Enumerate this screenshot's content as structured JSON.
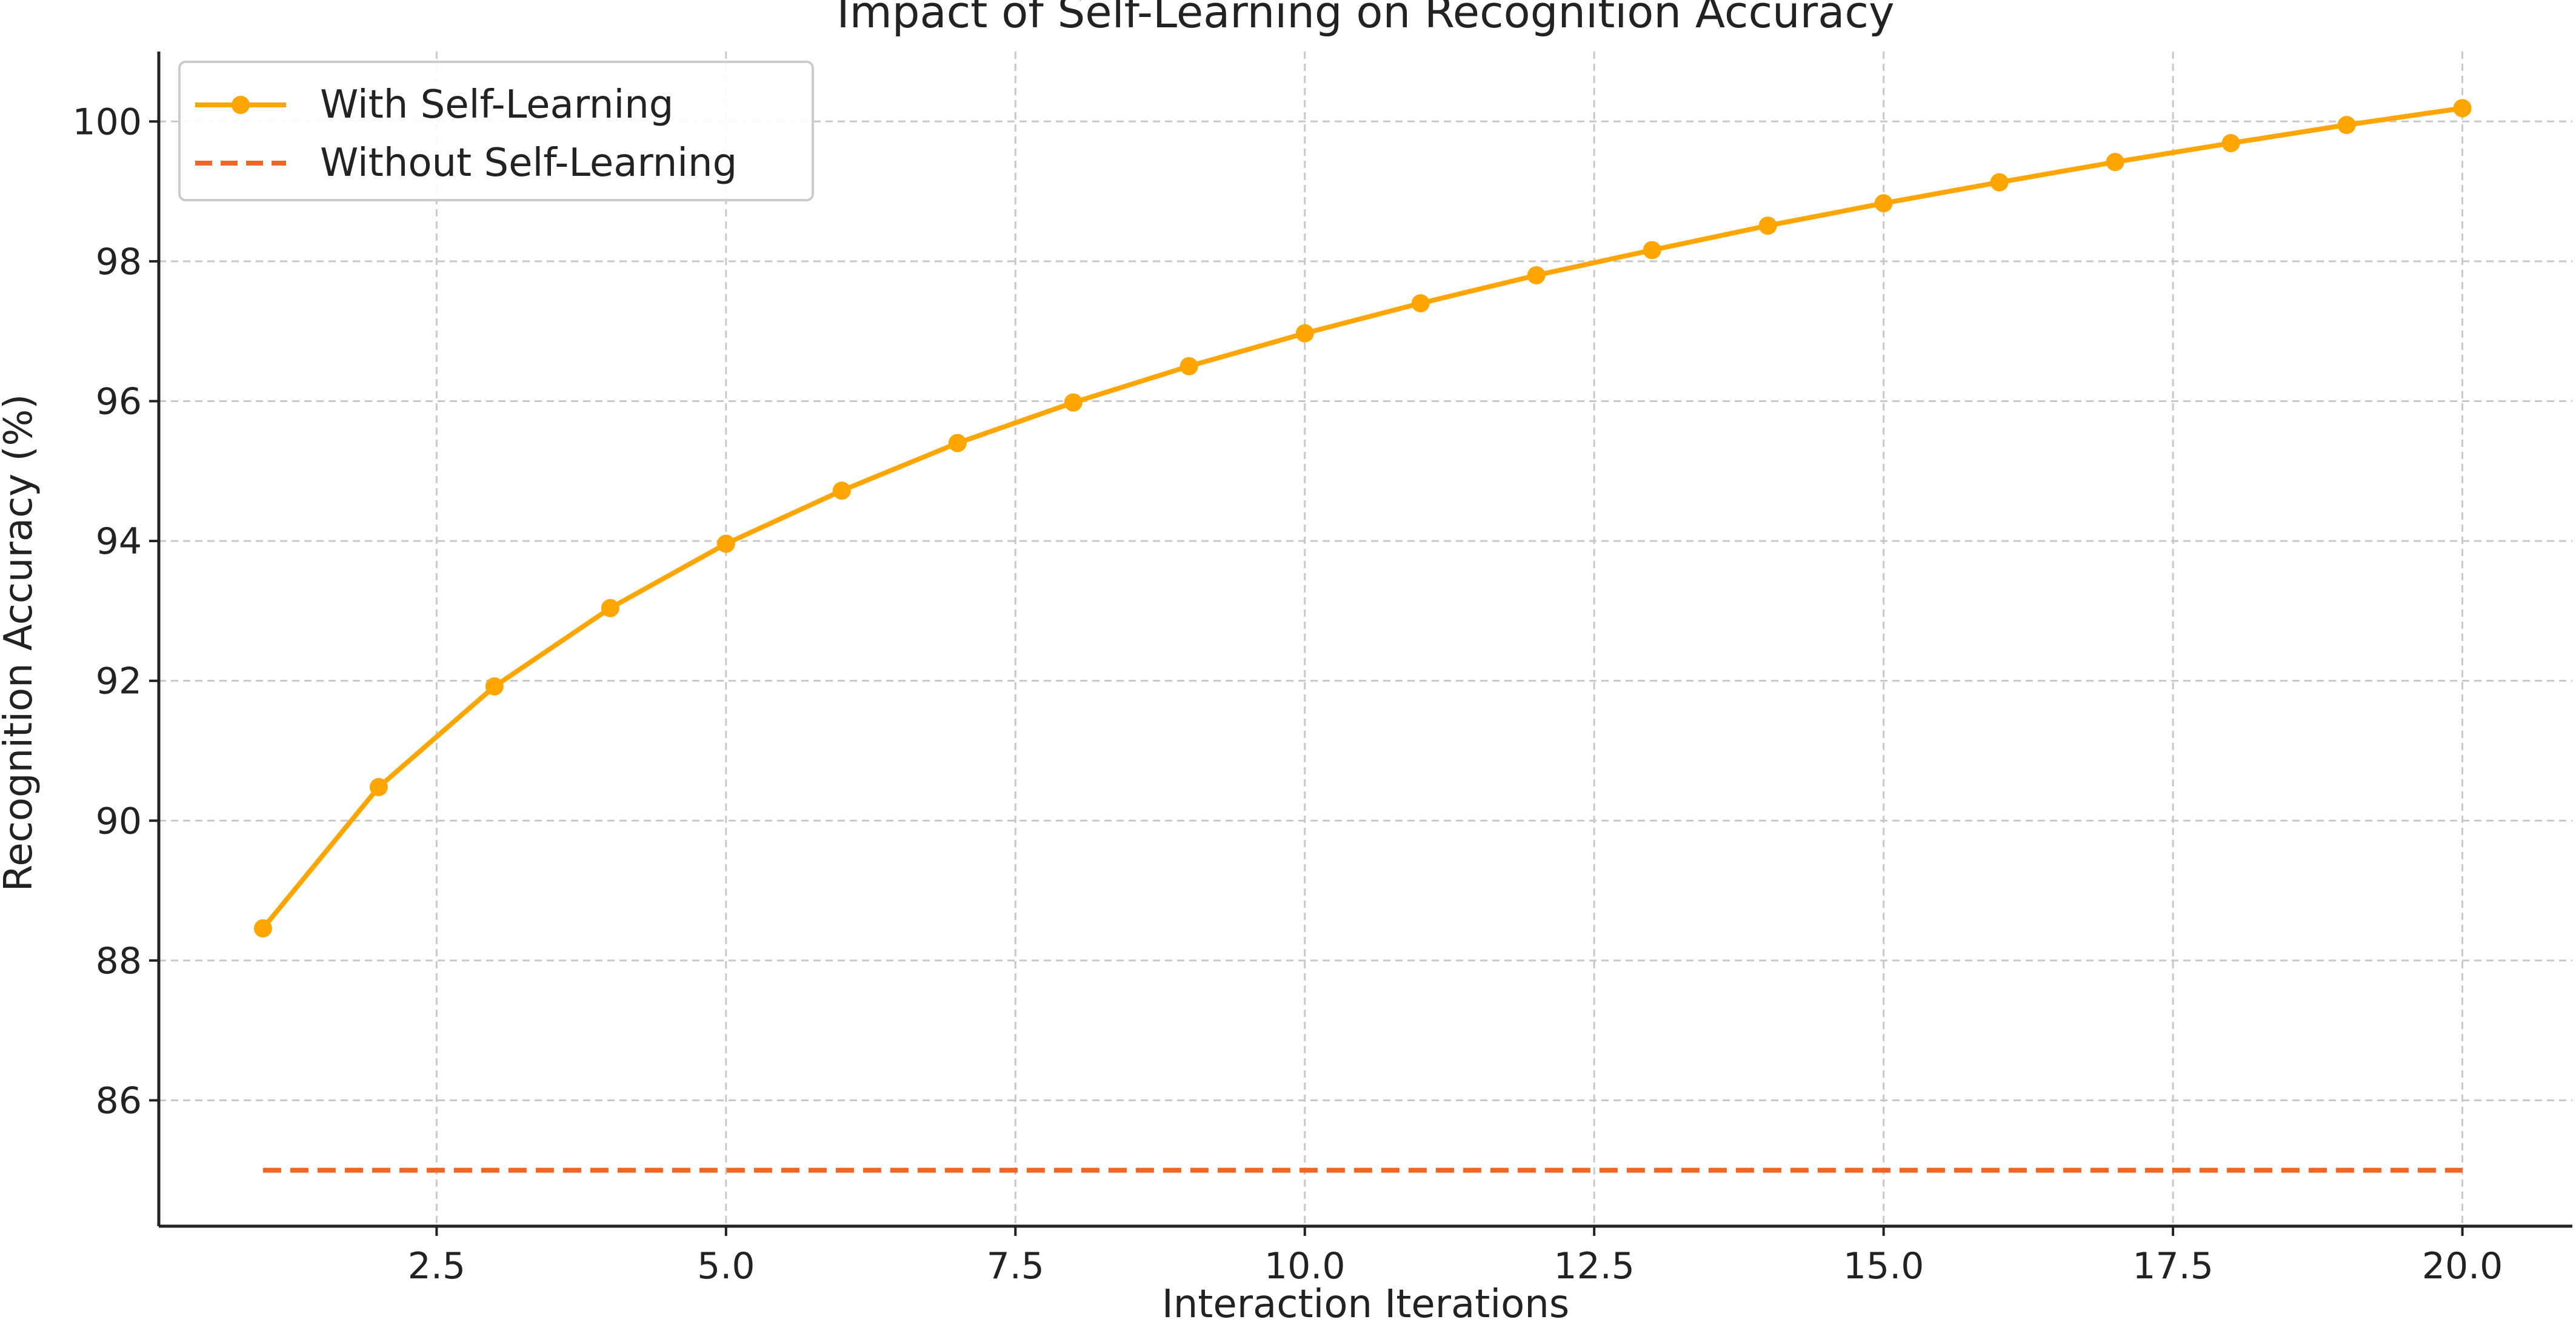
{
  "chart_data": {
    "type": "line",
    "title": "Impact of Self-Learning on Recognition Accuracy",
    "xlabel": "Interaction Iterations",
    "ylabel": "Recognition Accuracy (%)",
    "xlim": [
      0.1,
      20.95
    ],
    "ylim": [
      84.2,
      101.0
    ],
    "xticks": [
      2.5,
      5.0,
      7.5,
      10.0,
      12.5,
      15.0,
      17.5,
      20.0
    ],
    "xtick_labels": [
      "2.5",
      "5.0",
      "7.5",
      "10.0",
      "12.5",
      "15.0",
      "17.5",
      "20.0"
    ],
    "yticks": [
      86,
      88,
      90,
      92,
      94,
      96,
      98,
      100
    ],
    "ytick_labels": [
      "86",
      "88",
      "90",
      "92",
      "94",
      "96",
      "98",
      "100"
    ],
    "grid": true,
    "legend_position": "top-left",
    "x": [
      1,
      2,
      3,
      4,
      5,
      6,
      7,
      8,
      9,
      10,
      11,
      12,
      13,
      14,
      15,
      16,
      17,
      18,
      19,
      20
    ],
    "series": [
      {
        "name": "With Self-Learning",
        "style": "solid-with-markers",
        "color": "#FFA500",
        "values": [
          88.46,
          90.48,
          91.92,
          93.04,
          93.96,
          94.72,
          95.4,
          95.98,
          96.5,
          96.97,
          97.4,
          97.8,
          98.16,
          98.51,
          98.83,
          99.13,
          99.42,
          99.69,
          99.95,
          100.19
        ]
      },
      {
        "name": "Without Self-Learning",
        "style": "dashed",
        "color": "#F26522",
        "values": [
          85,
          85,
          85,
          85,
          85,
          85,
          85,
          85,
          85,
          85,
          85,
          85,
          85,
          85,
          85,
          85,
          85,
          85,
          85,
          85
        ]
      }
    ]
  }
}
